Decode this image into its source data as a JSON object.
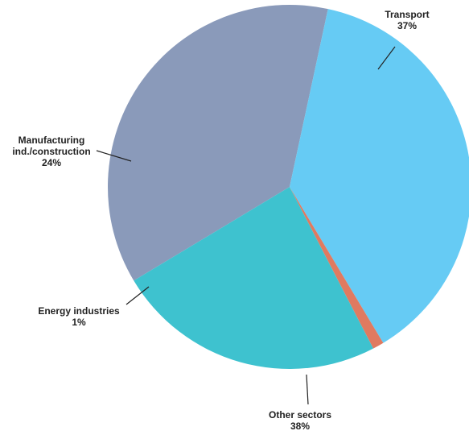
{
  "chart_data": {
    "type": "pie",
    "title": "",
    "slices": [
      {
        "name": "Transport",
        "value": 37,
        "value_label": "37%",
        "color": "#8a9aba"
      },
      {
        "name": "Other sectors",
        "value": 38,
        "value_label": "38%",
        "color": "#66cbf4"
      },
      {
        "name": "Energy industries",
        "value": 1,
        "value_label": "1%",
        "color": "#e07a60"
      },
      {
        "name": "Manufacturing ind./construction",
        "value": 24,
        "value_label": "24%",
        "color": "#3ec2cf",
        "label_lines": [
          "Manufacturing",
          "ind./construction"
        ]
      }
    ],
    "legend": false
  }
}
